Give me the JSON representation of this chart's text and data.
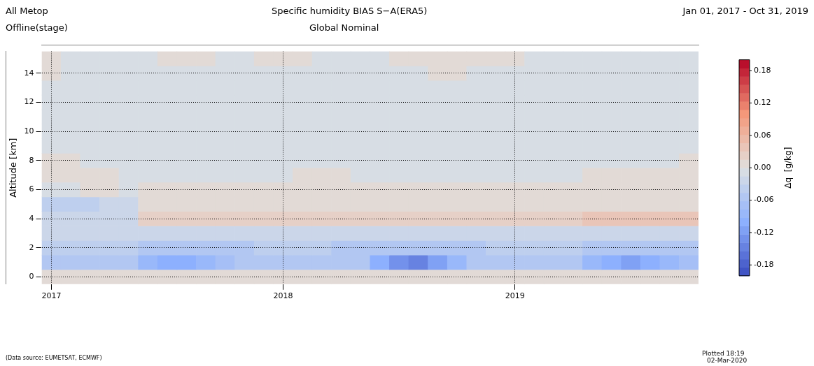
{
  "chart_data": {
    "type": "heatmap",
    "title": "Specific humidity   BIAS S−A(ERA5)",
    "subtitle": "Global   Nominal",
    "annotations": [
      "All Metop",
      "Offline(stage)",
      "Jan 01, 2017 - Oct 31, 2019",
      "(Data source: EUMETSAT, ECMWF)",
      "Plotted 18:19",
      "02-Mar-2020"
    ],
    "ylabel": "Altitude [km]",
    "clabel": "Δq  [g/kg]",
    "grid": true,
    "categories": [
      "2017",
      null,
      null,
      null,
      null,
      null,
      null,
      null,
      null,
      null,
      null,
      null,
      "2018",
      null,
      null,
      null,
      null,
      null,
      null,
      null,
      null,
      null,
      null,
      null,
      "2019",
      null,
      null,
      null,
      null,
      null,
      null,
      null,
      null,
      null
    ],
    "y_categories": [
      null,
      "14",
      null,
      "12",
      null,
      "10",
      null,
      "8",
      null,
      "6",
      null,
      "4",
      null,
      "2",
      null,
      "0"
    ],
    "clim": [
      -0.2,
      0.2
    ],
    "cticks": [
      -0.18,
      -0.12,
      -0.06,
      "0.00",
      0.06,
      0.12,
      0.18
    ],
    "cells": [
      [
        0.005,
        -0.01,
        -0.01,
        -0.01,
        -0.01,
        -0.01,
        0.005,
        0.005,
        0.005,
        -0.01,
        -0.01,
        0.005,
        0.005,
        0.005,
        -0.01,
        -0.01,
        -0.01,
        -0.01,
        0.005,
        0.005,
        0.005,
        0.005,
        0.005,
        0.005,
        0.005,
        -0.01,
        -0.01,
        -0.01,
        -0.01,
        -0.01,
        -0.01,
        -0.01,
        -0.01,
        -0.01
      ],
      [
        0.005,
        -0.01,
        -0.01,
        -0.01,
        -0.01,
        -0.01,
        -0.01,
        -0.01,
        -0.01,
        -0.01,
        -0.01,
        -0.01,
        -0.01,
        -0.01,
        -0.01,
        -0.01,
        -0.01,
        -0.01,
        -0.01,
        -0.01,
        0.005,
        0.005,
        -0.01,
        -0.01,
        -0.01,
        -0.01,
        -0.01,
        -0.01,
        -0.01,
        -0.01,
        -0.01,
        -0.01,
        -0.01,
        -0.01
      ],
      [
        -0.01,
        -0.01,
        -0.01,
        -0.01,
        -0.01,
        -0.01,
        -0.01,
        -0.01,
        -0.01,
        -0.01,
        -0.01,
        -0.01,
        -0.01,
        -0.01,
        -0.01,
        -0.01,
        -0.01,
        -0.01,
        -0.01,
        -0.01,
        -0.01,
        -0.01,
        -0.01,
        -0.01,
        -0.01,
        -0.01,
        -0.01,
        -0.01,
        -0.01,
        -0.01,
        -0.01,
        -0.01,
        -0.01,
        -0.01
      ],
      [
        -0.01,
        -0.01,
        -0.01,
        -0.01,
        -0.01,
        -0.01,
        -0.01,
        -0.01,
        -0.01,
        -0.01,
        -0.01,
        -0.01,
        -0.01,
        -0.01,
        -0.01,
        -0.01,
        -0.01,
        -0.01,
        -0.01,
        -0.01,
        -0.01,
        -0.01,
        -0.01,
        -0.01,
        -0.01,
        -0.01,
        -0.01,
        -0.01,
        -0.01,
        -0.01,
        -0.01,
        -0.01,
        -0.01,
        -0.01
      ],
      [
        -0.01,
        -0.01,
        -0.01,
        -0.01,
        -0.01,
        -0.01,
        -0.01,
        -0.01,
        -0.01,
        -0.01,
        -0.01,
        -0.01,
        -0.01,
        -0.01,
        -0.01,
        -0.01,
        -0.01,
        -0.01,
        -0.01,
        -0.01,
        -0.01,
        -0.01,
        -0.01,
        -0.01,
        -0.01,
        -0.01,
        -0.01,
        -0.01,
        -0.01,
        -0.01,
        -0.01,
        -0.01,
        -0.01,
        -0.01
      ],
      [
        -0.01,
        -0.01,
        -0.01,
        -0.01,
        -0.01,
        -0.01,
        -0.01,
        -0.01,
        -0.01,
        -0.01,
        -0.01,
        -0.01,
        -0.01,
        -0.01,
        -0.01,
        -0.01,
        -0.01,
        -0.01,
        -0.01,
        -0.01,
        -0.01,
        -0.01,
        -0.01,
        -0.01,
        -0.01,
        -0.01,
        -0.01,
        -0.01,
        -0.01,
        -0.01,
        -0.01,
        -0.01,
        -0.01,
        -0.01
      ],
      [
        -0.01,
        -0.01,
        -0.01,
        -0.01,
        -0.01,
        -0.01,
        -0.01,
        -0.01,
        -0.01,
        -0.01,
        -0.01,
        -0.01,
        -0.01,
        -0.01,
        -0.01,
        -0.01,
        -0.01,
        -0.01,
        -0.01,
        -0.01,
        -0.01,
        -0.01,
        -0.01,
        -0.01,
        -0.01,
        -0.01,
        -0.01,
        -0.01,
        -0.01,
        -0.01,
        -0.01,
        -0.01,
        -0.01,
        -0.01
      ],
      [
        0.005,
        0.005,
        -0.01,
        -0.01,
        -0.01,
        -0.01,
        -0.01,
        -0.01,
        -0.01,
        -0.01,
        -0.01,
        -0.01,
        -0.01,
        -0.01,
        -0.01,
        -0.01,
        -0.01,
        -0.01,
        -0.01,
        -0.01,
        -0.01,
        -0.01,
        -0.01,
        -0.01,
        -0.01,
        -0.01,
        -0.01,
        -0.01,
        -0.01,
        -0.01,
        -0.01,
        -0.01,
        -0.01,
        0.005
      ],
      [
        0.005,
        0.005,
        0.005,
        0.005,
        -0.01,
        -0.01,
        -0.01,
        -0.01,
        -0.01,
        -0.01,
        -0.01,
        -0.01,
        -0.01,
        0.005,
        0.005,
        0.005,
        -0.01,
        -0.01,
        -0.01,
        -0.01,
        -0.01,
        -0.01,
        -0.01,
        -0.01,
        -0.01,
        -0.01,
        -0.01,
        -0.01,
        0.005,
        0.005,
        0.005,
        0.005,
        0.005,
        0.005
      ],
      [
        -0.01,
        -0.01,
        0.005,
        0.005,
        -0.01,
        0.01,
        0.01,
        0.01,
        0.01,
        0.01,
        0.01,
        0.01,
        0.01,
        0.01,
        0.01,
        0.01,
        0.01,
        0.01,
        0.01,
        0.01,
        0.01,
        0.01,
        0.01,
        0.01,
        0.01,
        0.01,
        0.01,
        0.01,
        0.01,
        0.01,
        0.01,
        0.01,
        0.01,
        0.01
      ],
      [
        -0.04,
        -0.04,
        -0.04,
        -0.02,
        -0.02,
        0.015,
        0.015,
        0.015,
        0.015,
        0.015,
        0.015,
        0.015,
        0.015,
        0.015,
        0.015,
        0.015,
        0.015,
        0.015,
        0.015,
        0.015,
        0.015,
        0.015,
        0.015,
        0.015,
        0.015,
        0.015,
        0.015,
        0.015,
        0.015,
        0.015,
        0.015,
        0.015,
        0.015,
        0.015
      ],
      [
        -0.02,
        -0.02,
        -0.02,
        -0.02,
        -0.02,
        0.02,
        0.02,
        0.02,
        0.02,
        0.02,
        0.02,
        0.02,
        0.02,
        0.02,
        0.03,
        0.03,
        0.03,
        0.03,
        0.02,
        0.02,
        0.02,
        0.02,
        0.03,
        0.03,
        0.03,
        0.03,
        0.03,
        0.03,
        0.04,
        0.04,
        0.04,
        0.04,
        0.04,
        0.04
      ],
      [
        -0.03,
        -0.03,
        -0.03,
        -0.03,
        -0.03,
        -0.02,
        -0.02,
        -0.02,
        -0.02,
        -0.02,
        -0.02,
        -0.02,
        -0.02,
        -0.02,
        -0.02,
        -0.02,
        -0.02,
        -0.02,
        -0.02,
        -0.02,
        -0.02,
        -0.02,
        -0.02,
        -0.02,
        -0.02,
        -0.02,
        -0.02,
        -0.02,
        -0.02,
        -0.02,
        -0.02,
        -0.02,
        -0.02,
        -0.02
      ],
      [
        -0.04,
        -0.04,
        -0.04,
        -0.04,
        -0.04,
        -0.06,
        -0.06,
        -0.06,
        -0.06,
        -0.06,
        -0.06,
        -0.04,
        -0.04,
        -0.04,
        -0.04,
        -0.06,
        -0.06,
        -0.06,
        -0.06,
        -0.06,
        -0.06,
        -0.06,
        -0.06,
        -0.04,
        -0.04,
        -0.04,
        -0.04,
        -0.04,
        -0.06,
        -0.06,
        -0.06,
        -0.06,
        -0.06,
        -0.06
      ],
      [
        -0.05,
        -0.05,
        -0.05,
        -0.05,
        -0.05,
        -0.08,
        -0.1,
        -0.1,
        -0.09,
        -0.07,
        -0.05,
        -0.05,
        -0.05,
        -0.05,
        -0.05,
        -0.05,
        -0.05,
        -0.1,
        -0.13,
        -0.14,
        -0.12,
        -0.08,
        -0.05,
        -0.05,
        -0.05,
        -0.05,
        -0.05,
        -0.05,
        -0.08,
        -0.1,
        -0.11,
        -0.1,
        -0.09,
        -0.07
      ],
      [
        0.01,
        0.01,
        0.01,
        0.01,
        0.01,
        0.01,
        0.01,
        0.01,
        0.01,
        0.01,
        0.01,
        0.01,
        0.01,
        0.01,
        0.01,
        0.01,
        0.01,
        0.01,
        0.01,
        0.01,
        0.01,
        0.01,
        0.01,
        0.01,
        0.01,
        0.01,
        0.01,
        0.01,
        0.01,
        0.01,
        0.01,
        0.01,
        0.01,
        0.01
      ]
    ]
  }
}
